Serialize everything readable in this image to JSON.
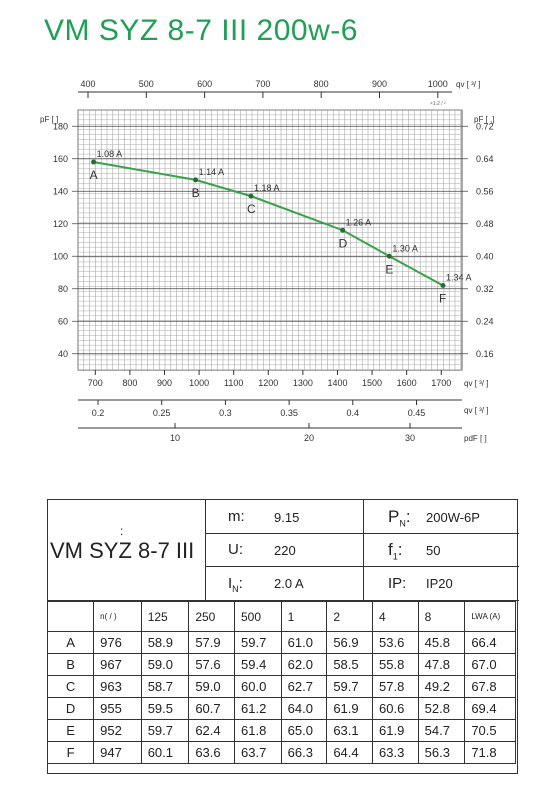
{
  "title": "VM SYZ 8-7 III 200w-6",
  "chart_data": {
    "type": "line",
    "curve": [
      {
        "point": "A",
        "q": 695,
        "p": 158,
        "current": "1.08 A"
      },
      {
        "point": "B",
        "q": 990,
        "p": 147,
        "current": "1.14 A"
      },
      {
        "point": "C",
        "q": 1150,
        "p": 137,
        "current": "1.18 A"
      },
      {
        "point": "D",
        "q": 1415,
        "p": 116,
        "current": "1.26 A"
      },
      {
        "point": "E",
        "q": 1550,
        "p": 100,
        "current": "1.30 A"
      },
      {
        "point": "F",
        "q": 1705,
        "p": 82,
        "current": "1.34 A"
      }
    ],
    "xlim": [
      650,
      1760
    ],
    "ylim": [
      30,
      190
    ],
    "left_ticks": [
      "180",
      "160",
      "140",
      "120",
      "100",
      "80",
      "60",
      "40"
    ],
    "right_ticks": [
      "0.72",
      "0.64",
      "0.56",
      "0.48",
      "0.40",
      "0.32",
      "0.24",
      "0.16"
    ],
    "top_ticks": [
      "400",
      "500",
      "600",
      "700",
      "800",
      "900",
      "1000"
    ],
    "bottom_ticks": [
      "700",
      "800",
      "900",
      "1000",
      "1100",
      "1200",
      "1300",
      "1400",
      "1500",
      "1600",
      "1700"
    ],
    "axis2_ticks": [
      "0.2",
      "0.25",
      "0.3",
      "0.35",
      "0.4",
      "0.45"
    ],
    "axis3_ticks": [
      "10",
      "20",
      "30"
    ],
    "top_label": "qv [ ³/ ]",
    "top_sub": "×1.2 / ²",
    "left_label": "pF [ ]",
    "right_label": "pF [ ,]",
    "bottom_label": "qv [ ³/ ]",
    "axis2_label": "qv [ ³/ ]",
    "axis3_label": "pdF [ ]",
    "grid": true,
    "line_color": "#3aa24a"
  },
  "spec": {
    "colon": ":",
    "model": "VM SYZ 8-7 III",
    "m_label": "m:",
    "m_value": "9.15",
    "u_label": "U:",
    "u_value": "220",
    "i_label": "I",
    "i_sub": "N",
    "i_colon": ":",
    "i_value": "2.0  A",
    "p_label": "P",
    "p_sub": "N",
    "p_colon": ":",
    "p_value": "200W-6P",
    "f_label": "f",
    "f_sub": "1",
    "f_colon": ":",
    "f_value": "50",
    "ip_label": "IP:",
    "ip_value": "IP20"
  },
  "octave": {
    "header": [
      "n( / )",
      "125",
      "250",
      "500",
      "1",
      "2",
      "4",
      "8",
      "LWA (A)"
    ],
    "rows": [
      [
        "A",
        "976",
        "58.9",
        "57.9",
        "59.7",
        "61.0",
        "56.9",
        "53.6",
        "45.8",
        "66.4"
      ],
      [
        "B",
        "967",
        "59.0",
        "57.6",
        "59.4",
        "62.0",
        "58.5",
        "55.8",
        "47.8",
        "67.0"
      ],
      [
        "C",
        "963",
        "58.7",
        "59.0",
        "60.0",
        "62.7",
        "59.7",
        "57.8",
        "49.2",
        "67.8"
      ],
      [
        "D",
        "955",
        "59.5",
        "60.7",
        "61.2",
        "64.0",
        "61.9",
        "60.6",
        "52.8",
        "69.4"
      ],
      [
        "E",
        "952",
        "59.7",
        "62.4",
        "61.8",
        "65.0",
        "63.1",
        "61.9",
        "54.7",
        "70.5"
      ],
      [
        "F",
        "947",
        "60.1",
        "63.6",
        "63.7",
        "66.3",
        "64.4",
        "63.3",
        "56.3",
        "71.8"
      ]
    ]
  }
}
